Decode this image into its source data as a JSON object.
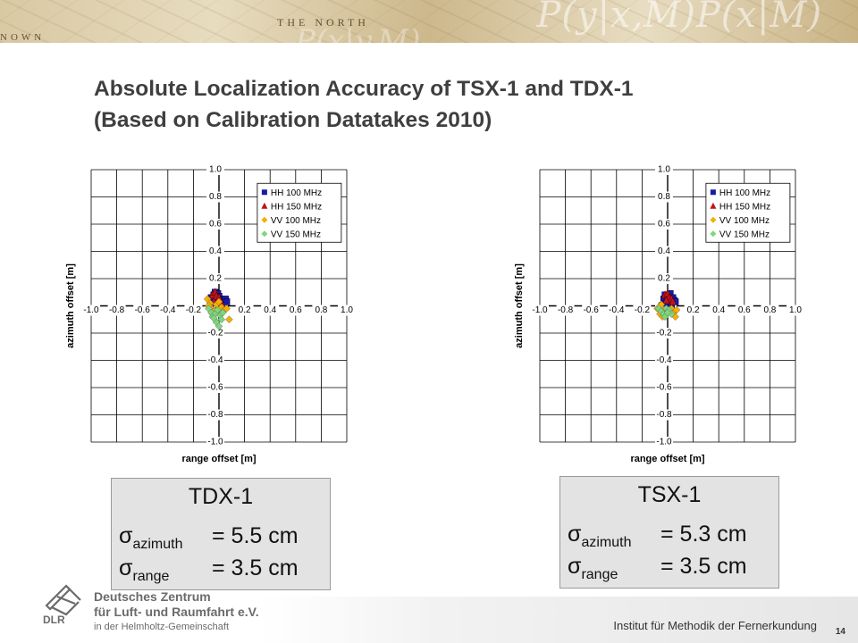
{
  "banner": {
    "formula_top": "P(y|x,M)P(x|M)",
    "formula_bottom": "P(x|y,M)",
    "map_label_1": "THE NORTH",
    "map_label_2": "NOWN"
  },
  "title": {
    "line1": "Absolute Localization Accuracy of TSX-1 and TDX-1",
    "line2": "(Based on Calibration Datatakes 2010)"
  },
  "chart_data": [
    {
      "type": "scatter",
      "panel": "left",
      "xlabel": "range offset [m]",
      "ylabel": "azimuth offset [m]",
      "xlim": [
        -1.0,
        1.0
      ],
      "ylim": [
        -1.0,
        1.0
      ],
      "x_ticks": [
        "-1.0",
        "-0.8",
        "-0.6",
        "-0.4",
        "-0.2",
        "0.0",
        "0.2",
        "0.4",
        "0.6",
        "0.8",
        "1.0"
      ],
      "y_ticks": [
        "1.0",
        "0.8",
        "0.6",
        "0.4",
        "0.2",
        "0.0",
        "-0.2",
        "-0.4",
        "-0.6",
        "-0.8",
        "-1.0"
      ],
      "grid": true,
      "legend_position": "top-right",
      "series": [
        {
          "name": "HH 100 MHz",
          "marker": "square",
          "color": "#1a1aa8",
          "x": [
            -0.06,
            -0.04,
            -0.03,
            -0.01,
            0.0,
            0.01,
            0.02,
            0.03,
            -0.02,
            0.05,
            0.06,
            -0.05
          ],
          "y": [
            0.06,
            0.08,
            0.1,
            0.09,
            0.07,
            0.05,
            0.04,
            0.03,
            0.02,
            0.05,
            0.03,
            0.04
          ]
        },
        {
          "name": "HH 150 MHz",
          "marker": "triangle",
          "color": "#c0141b",
          "x": [
            -0.05,
            -0.03,
            -0.02,
            0.0,
            0.01,
            0.02,
            0.03,
            -0.04
          ],
          "y": [
            0.08,
            0.1,
            0.07,
            0.06,
            0.04,
            0.02,
            0.0,
            0.03
          ]
        },
        {
          "name": "VV 100 MHz",
          "marker": "diamond",
          "color": "#f4b000",
          "x": [
            -0.09,
            -0.07,
            -0.06,
            -0.04,
            -0.02,
            0.0,
            0.02,
            0.04,
            0.06,
            -0.05,
            0.01,
            0.08,
            -0.08
          ],
          "y": [
            0.05,
            0.02,
            -0.02,
            -0.04,
            0.01,
            0.03,
            -0.01,
            -0.03,
            -0.02,
            -0.06,
            -0.05,
            -0.1,
            0.0
          ]
        },
        {
          "name": "VV 150 MHz",
          "marker": "diamond",
          "color": "#7ed67e",
          "x": [
            -0.08,
            -0.06,
            -0.05,
            -0.03,
            -0.01,
            0.01,
            0.03,
            0.02,
            -0.02,
            0.0,
            -0.04
          ],
          "y": [
            -0.02,
            -0.05,
            -0.08,
            -0.06,
            -0.03,
            -0.07,
            -0.05,
            -0.1,
            -0.12,
            -0.15,
            -0.09
          ]
        }
      ]
    },
    {
      "type": "scatter",
      "panel": "right",
      "xlabel": "range offset [m]",
      "ylabel": "azimuth offset [m]",
      "xlim": [
        -1.0,
        1.0
      ],
      "ylim": [
        -1.0,
        1.0
      ],
      "x_ticks": [
        "-1.0",
        "-0.8",
        "-0.6",
        "-0.4",
        "-0.2",
        "0.0",
        "0.2",
        "0.4",
        "0.6",
        "0.8",
        "1.0"
      ],
      "y_ticks": [
        "1.0",
        "0.8",
        "0.6",
        "0.4",
        "0.2",
        "0.0",
        "-0.2",
        "-0.4",
        "-0.6",
        "-0.8",
        "-1.0"
      ],
      "grid": true,
      "legend_position": "top-right",
      "series": [
        {
          "name": "HH 100 MHz",
          "marker": "square",
          "color": "#1a1aa8",
          "x": [
            -0.03,
            -0.02,
            0.0,
            0.02,
            0.04,
            0.05,
            0.06,
            -0.01,
            0.03
          ],
          "y": [
            0.05,
            0.08,
            0.07,
            0.09,
            0.06,
            0.04,
            0.03,
            0.02,
            0.01
          ]
        },
        {
          "name": "HH 150 MHz",
          "marker": "triangle",
          "color": "#c0141b",
          "x": [
            -0.02,
            0.0,
            0.01,
            0.03,
            0.04,
            -0.01
          ],
          "y": [
            0.08,
            0.09,
            0.06,
            0.05,
            0.03,
            0.04
          ]
        },
        {
          "name": "VV 100 MHz",
          "marker": "diamond",
          "color": "#f4b000",
          "x": [
            -0.08,
            -0.06,
            -0.05,
            -0.03,
            -0.01,
            0.01,
            0.03,
            0.05,
            0.06,
            0.07,
            -0.04
          ],
          "y": [
            -0.02,
            -0.06,
            0.01,
            -0.03,
            -0.06,
            -0.04,
            -0.02,
            -0.05,
            -0.08,
            -0.03,
            -0.08
          ]
        },
        {
          "name": "VV 150 MHz",
          "marker": "diamond",
          "color": "#7ed67e",
          "x": [
            -0.07,
            -0.05,
            -0.03,
            -0.01,
            0.01,
            0.03,
            -0.02,
            0.0
          ],
          "y": [
            -0.02,
            -0.04,
            -0.06,
            -0.02,
            -0.03,
            -0.06,
            -0.08,
            -0.05
          ]
        }
      ]
    }
  ],
  "stats": [
    {
      "name": "TDX-1",
      "sigma": "σ",
      "az_sub": "azimuth",
      "az_val": "= 5.5 cm",
      "rg_sub": "range",
      "rg_val": "= 3.5 cm"
    },
    {
      "name": "TSX-1",
      "sigma": "σ",
      "az_sub": "azimuth",
      "az_val": "= 5.3 cm",
      "rg_sub": "range",
      "rg_val": "= 3.5 cm"
    }
  ],
  "logo": {
    "abbr": "DLR",
    "line1": "Deutsches Zentrum",
    "line2": "für Luft- und Raumfahrt e.V.",
    "line3": "in der Helmholtz-Gemeinschaft"
  },
  "footer": {
    "institute": "Institut für Methodik der Fernerkundung",
    "page": "14"
  },
  "colors": {
    "title": "#3f3f3f",
    "statbox_bg": "#e3e3e3",
    "dlr_gray": "#6b6b6b"
  }
}
